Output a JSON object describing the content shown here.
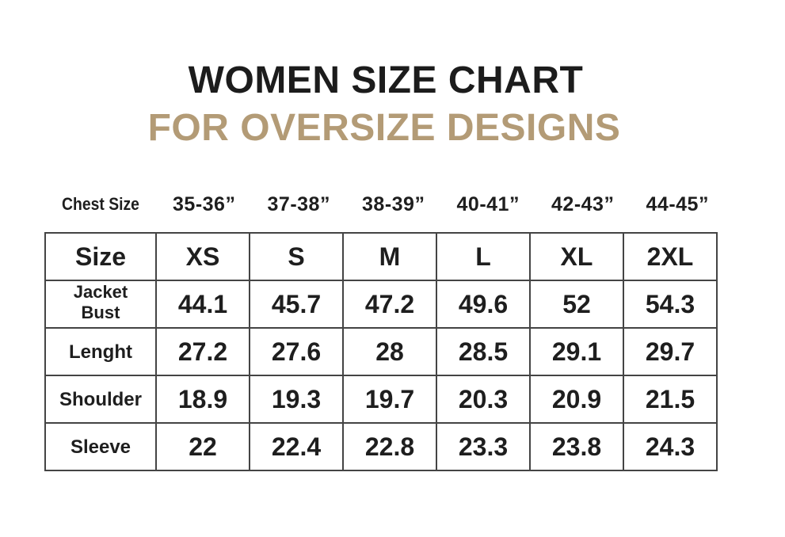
{
  "title": "WOMEN SIZE CHART",
  "subtitle": "FOR OVERSIZE DESIGNS",
  "colors": {
    "title": "#1c1c1c",
    "subtitle": "#b39b76",
    "grid": "#444444"
  },
  "chest": {
    "label": "Chest Size",
    "values": [
      "35-36”",
      "37-38”",
      "38-39”",
      "40-41”",
      "42-43”",
      "44-45”"
    ]
  },
  "table": {
    "size_label": "Size",
    "sizes": [
      "XS",
      "S",
      "M",
      "L",
      "XL",
      "2XL"
    ],
    "rows": [
      {
        "label_line1": "Jacket",
        "label_line2": "Bust",
        "values": [
          "44.1",
          "45.7",
          "47.2",
          "49.6",
          "52",
          "54.3"
        ]
      },
      {
        "label": "Lenght",
        "values": [
          "27.2",
          "27.6",
          "28",
          "28.5",
          "29.1",
          "29.7"
        ]
      },
      {
        "label": "Shoulder",
        "values": [
          "18.9",
          "19.3",
          "19.7",
          "20.3",
          "20.9",
          "21.5"
        ]
      },
      {
        "label": "Sleeve",
        "values": [
          "22",
          "22.4",
          "22.8",
          "23.3",
          "23.8",
          "24.3"
        ]
      }
    ]
  }
}
